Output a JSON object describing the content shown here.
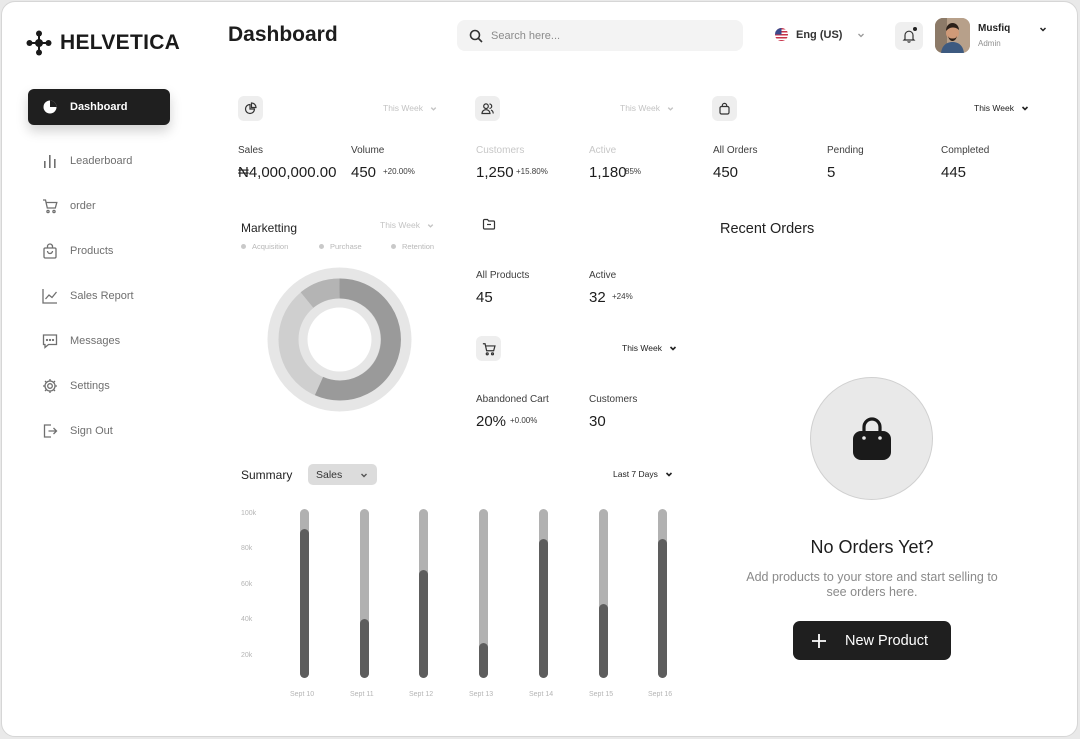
{
  "app": {
    "brand": "HELVETICA",
    "page_title": "Dashboard"
  },
  "sidebar": {
    "items": [
      {
        "label": "Dashboard",
        "icon": "pie-chart-icon",
        "active": true
      },
      {
        "label": "Leaderboard",
        "icon": "bar-chart-icon",
        "active": false
      },
      {
        "label": "order",
        "icon": "cart-icon",
        "active": false
      },
      {
        "label": "Products",
        "icon": "bag-icon",
        "active": false
      },
      {
        "label": "Sales Report",
        "icon": "line-chart-icon",
        "active": false
      },
      {
        "label": "Messages",
        "icon": "message-icon",
        "active": false
      },
      {
        "label": "Settings",
        "icon": "gear-icon",
        "active": false
      },
      {
        "label": "Sign Out",
        "icon": "sign-out-icon",
        "active": false
      }
    ]
  },
  "header": {
    "search_placeholder": "Search here...",
    "language": "Eng (US)",
    "user": {
      "name": "Musfiq",
      "role": "Admin"
    }
  },
  "sales_card": {
    "period": "This Week",
    "stats": [
      {
        "label": "Sales",
        "value": "₦4,000,000.00",
        "change": ""
      },
      {
        "label": "Volume",
        "value": "450",
        "change": "+20.00%"
      }
    ]
  },
  "customers_card": {
    "period": "This Week",
    "stats": [
      {
        "label": "Customers",
        "value": "1,250",
        "change": "+15.80%"
      },
      {
        "label": "Active",
        "value": "1,180",
        "change": "85%"
      }
    ]
  },
  "orders_card": {
    "period": "This Week",
    "stats": [
      {
        "label": "All Orders",
        "value": "450"
      },
      {
        "label": "Pending",
        "value": "5"
      },
      {
        "label": "Completed",
        "value": "445"
      }
    ]
  },
  "marketing": {
    "title": "Marketting",
    "period": "This Week",
    "legend": [
      "Acquisition",
      "Purchase",
      "Retention"
    ]
  },
  "products_card": {
    "stats": [
      {
        "label": "All Products",
        "value": "45",
        "change": ""
      },
      {
        "label": "Active",
        "value": "32",
        "change": "+24%"
      }
    ]
  },
  "cart_card": {
    "period": "This Week",
    "stats": [
      {
        "label": "Abandoned Cart",
        "value": "20%",
        "change": "+0.00%"
      },
      {
        "label": "Customers",
        "value": "30",
        "change": ""
      }
    ]
  },
  "summary": {
    "title": "Summary",
    "metric": "Sales",
    "range": "Last 7 Days"
  },
  "chart_data": {
    "type": "bar",
    "title": "Summary",
    "categories": [
      "Sept 10",
      "Sept 11",
      "Sept 12",
      "Sept 13",
      "Sept 14",
      "Sept 15",
      "Sept 16"
    ],
    "y_ticks": [
      "100k",
      "80k",
      "60k",
      "40k",
      "20k"
    ],
    "ylim": [
      0,
      100
    ],
    "series": [
      {
        "values": [
          88,
          35,
          64,
          21,
          82,
          44,
          82
        ]
      }
    ]
  },
  "recent_orders": {
    "title": "Recent Orders",
    "empty_title": "No Orders Yet?",
    "empty_desc": "Add products to your store and start selling to see orders here.",
    "button_label": "New Product"
  }
}
